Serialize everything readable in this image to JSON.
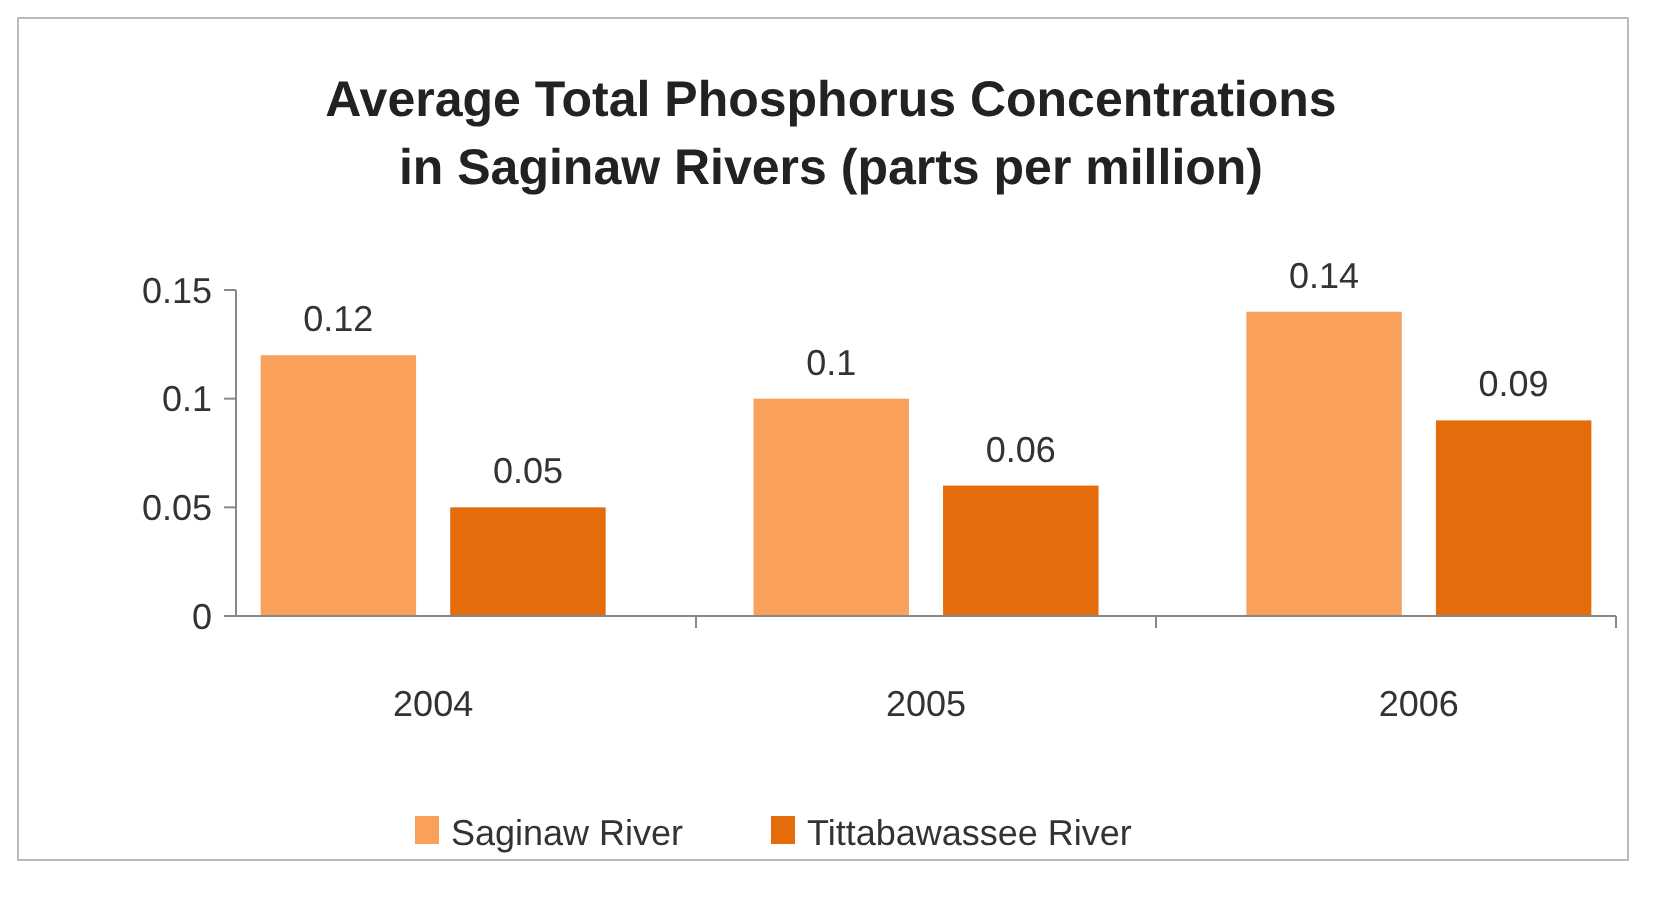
{
  "chart_data": {
    "type": "bar",
    "title": "Average Total Phosphorus Concentrations\nin Saginaw Rivers (parts per million)",
    "categories": [
      "2004",
      "2005",
      "2006"
    ],
    "series": [
      {
        "name": "Saginaw River",
        "color": "#f9a05a",
        "values": [
          0.12,
          0.1,
          0.14
        ]
      },
      {
        "name": "Tittabawassee River",
        "color": "#e46c0a",
        "values": [
          0.05,
          0.06,
          0.09
        ]
      }
    ],
    "ylim": [
      0,
      0.15
    ],
    "yticks": [
      0,
      0.05,
      0.1,
      0.15
    ],
    "data_labels": true,
    "grid": false,
    "legend": "bottom"
  }
}
